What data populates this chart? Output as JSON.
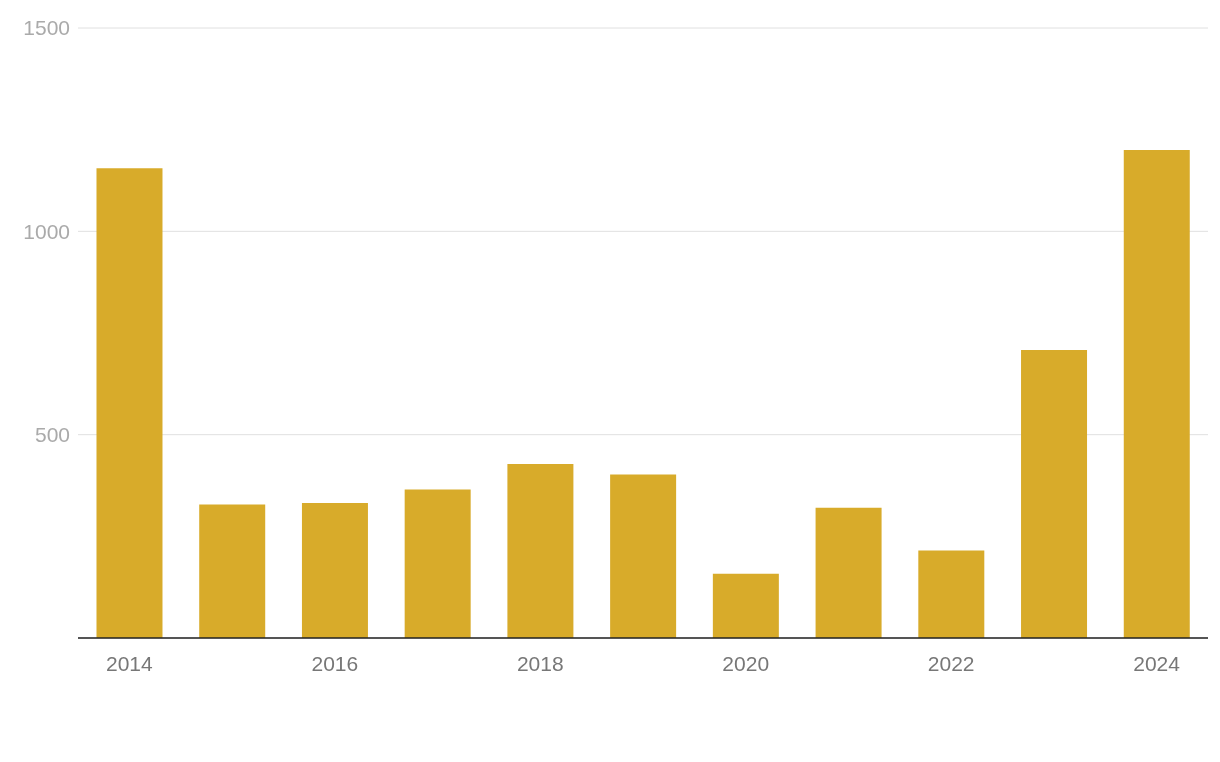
{
  "chart_data": {
    "type": "bar",
    "categories": [
      "2014",
      null,
      "2016",
      null,
      "2018",
      null,
      "2020",
      null,
      "2022",
      null,
      "2024"
    ],
    "values": [
      1155,
      328,
      332,
      365,
      428,
      402,
      158,
      320,
      215,
      708,
      1200
    ],
    "color": "#d8ab2a",
    "ylim": [
      0,
      1500
    ],
    "yticks": [
      500,
      1000,
      1500
    ],
    "grid": "y"
  }
}
